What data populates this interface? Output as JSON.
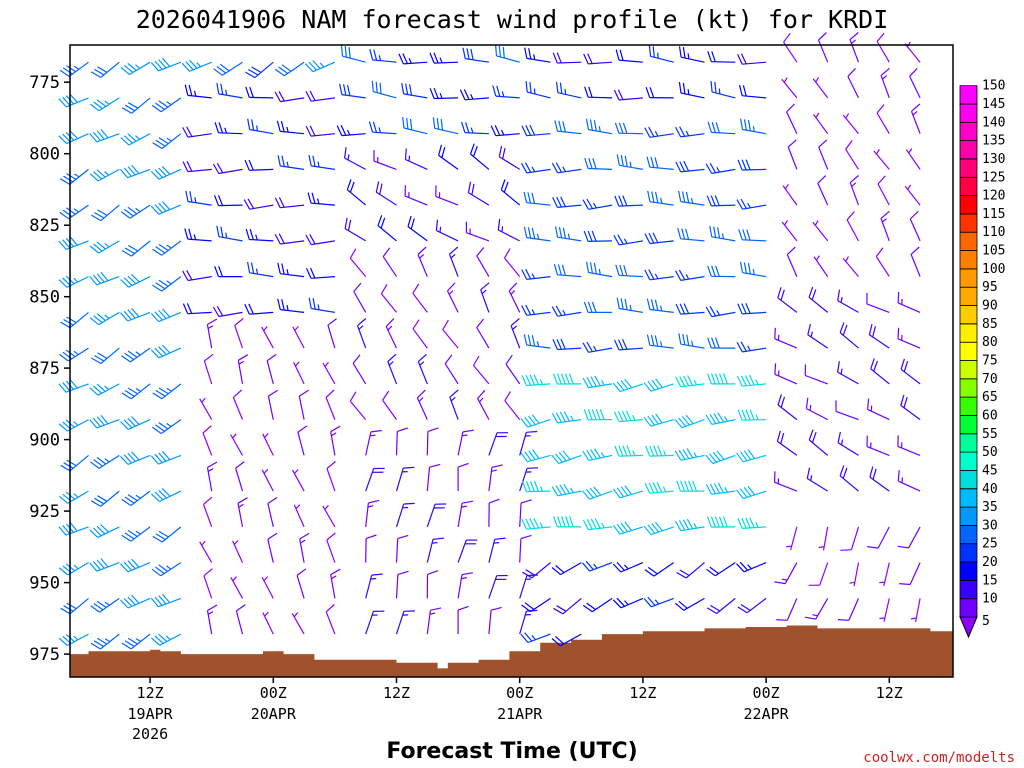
{
  "chart_data": {
    "type": "wind-barb time-height profile",
    "title": "2026041906 NAM forecast wind profile (kt) for KRDI",
    "xlabel": "Forecast Time (UTC)",
    "ylabel": "",
    "units": "kt",
    "y_axis": {
      "quantity": "pressure (hPa)",
      "ticks": [
        775,
        800,
        825,
        850,
        875,
        900,
        925,
        950,
        975
      ],
      "range": [
        762,
        983
      ]
    },
    "x_axis": {
      "range_hours": [
        -1.8,
        84.2
      ],
      "ticks": [
        {
          "hour": 6,
          "label": "12Z",
          "date": "19APR",
          "year": "2026"
        },
        {
          "hour": 18,
          "label": "00Z",
          "date": "20APR"
        },
        {
          "hour": 30,
          "label": "12Z"
        },
        {
          "hour": 42,
          "label": "00Z",
          "date": "21APR"
        },
        {
          "hour": 54,
          "label": "12Z"
        },
        {
          "hour": 66,
          "label": "00Z",
          "date": "22APR"
        },
        {
          "hour": 78,
          "label": "12Z"
        }
      ]
    },
    "colorbar": {
      "levels": [
        5,
        10,
        15,
        20,
        25,
        30,
        35,
        40,
        45,
        50,
        55,
        60,
        65,
        70,
        75,
        80,
        85,
        90,
        95,
        100,
        105,
        110,
        115,
        120,
        125,
        130,
        135,
        140,
        145,
        150
      ],
      "colors": [
        "#8f00ff",
        "#6f00ff",
        "#3a00ff",
        "#0000ff",
        "#0033ff",
        "#0066ff",
        "#0099ff",
        "#00bbff",
        "#00dddd",
        "#00ffcc",
        "#00ff99",
        "#00ff33",
        "#33ff00",
        "#88ff00",
        "#ccff00",
        "#ffff00",
        "#ffee00",
        "#ffcc00",
        "#ffaa00",
        "#ff9900",
        "#ff8000",
        "#ff6600",
        "#ff3300",
        "#ff0000",
        "#ff0044",
        "#ff0077",
        "#ff00aa",
        "#ff00cc",
        "#ff00ee",
        "#ff00ff"
      ]
    },
    "terrain": {
      "color": "#a0522d",
      "surface_pressure": [
        [
          -1.8,
          975
        ],
        [
          0,
          974
        ],
        [
          5,
          974
        ],
        [
          6,
          973.5
        ],
        [
          7,
          974
        ],
        [
          9,
          975
        ],
        [
          16,
          975
        ],
        [
          17,
          974
        ],
        [
          19,
          975
        ],
        [
          22,
          977
        ],
        [
          29,
          977
        ],
        [
          30,
          978
        ],
        [
          34,
          980
        ],
        [
          35,
          978
        ],
        [
          38,
          977
        ],
        [
          41,
          974
        ],
        [
          44,
          971
        ],
        [
          47,
          970
        ],
        [
          50,
          968
        ],
        [
          54,
          967
        ],
        [
          56,
          967
        ],
        [
          60,
          966
        ],
        [
          62,
          966
        ],
        [
          64,
          965.5
        ],
        [
          67,
          965.5
        ],
        [
          68,
          965
        ],
        [
          71,
          966
        ],
        [
          81,
          966
        ],
        [
          82,
          967
        ],
        [
          84.2,
          966
        ]
      ]
    },
    "regimes": [
      {
        "hours": [
          0,
          12
        ],
        "pressures": [
          762,
          975
        ],
        "direction_deg": 240,
        "speed_kt": 36
      },
      {
        "hours": [
          12,
          26
        ],
        "pressures": [
          762,
          780
        ],
        "direction_deg": 240,
        "speed_kt": 33
      },
      {
        "hours": [
          12,
          26
        ],
        "pressures": [
          780,
          860
        ],
        "direction_deg": 270,
        "speed_kt": 22
      },
      {
        "hours": [
          12,
          26
        ],
        "pressures": [
          860,
          980
        ],
        "direction_deg": 340,
        "speed_kt": 9
      },
      {
        "hours": [
          26,
          44
        ],
        "pressures": [
          762,
          800
        ],
        "direction_deg": 275,
        "speed_kt": 27
      },
      {
        "hours": [
          26,
          44
        ],
        "pressures": [
          800,
          840
        ],
        "direction_deg": 300,
        "speed_kt": 18
      },
      {
        "hours": [
          26,
          44
        ],
        "pressures": [
          840,
          895
        ],
        "direction_deg": 330,
        "speed_kt": 12
      },
      {
        "hours": [
          26,
          44
        ],
        "pressures": [
          895,
          980
        ],
        "direction_deg": 10,
        "speed_kt": 14
      },
      {
        "hours": [
          44,
          68
        ],
        "pressures": [
          762,
          790
        ],
        "direction_deg": 275,
        "speed_kt": 22
      },
      {
        "hours": [
          44,
          68
        ],
        "pressures": [
          790,
          870
        ],
        "direction_deg": 270,
        "speed_kt": 30
      },
      {
        "hours": [
          44,
          68
        ],
        "pressures": [
          870,
          935
        ],
        "direction_deg": 260,
        "speed_kt": 44
      },
      {
        "hours": [
          44,
          68
        ],
        "pressures": [
          935,
          970
        ],
        "direction_deg": 240,
        "speed_kt": 22
      },
      {
        "hours": [
          68,
          84
        ],
        "pressures": [
          762,
          850
        ],
        "direction_deg": 330,
        "speed_kt": 9
      },
      {
        "hours": [
          68,
          84
        ],
        "pressures": [
          850,
          930
        ],
        "direction_deg": 300,
        "speed_kt": 16
      },
      {
        "hours": [
          68,
          84
        ],
        "pressures": [
          930,
          970
        ],
        "direction_deg": 200,
        "speed_kt": 9
      }
    ]
  },
  "credit": "coolwx.com/modelts"
}
